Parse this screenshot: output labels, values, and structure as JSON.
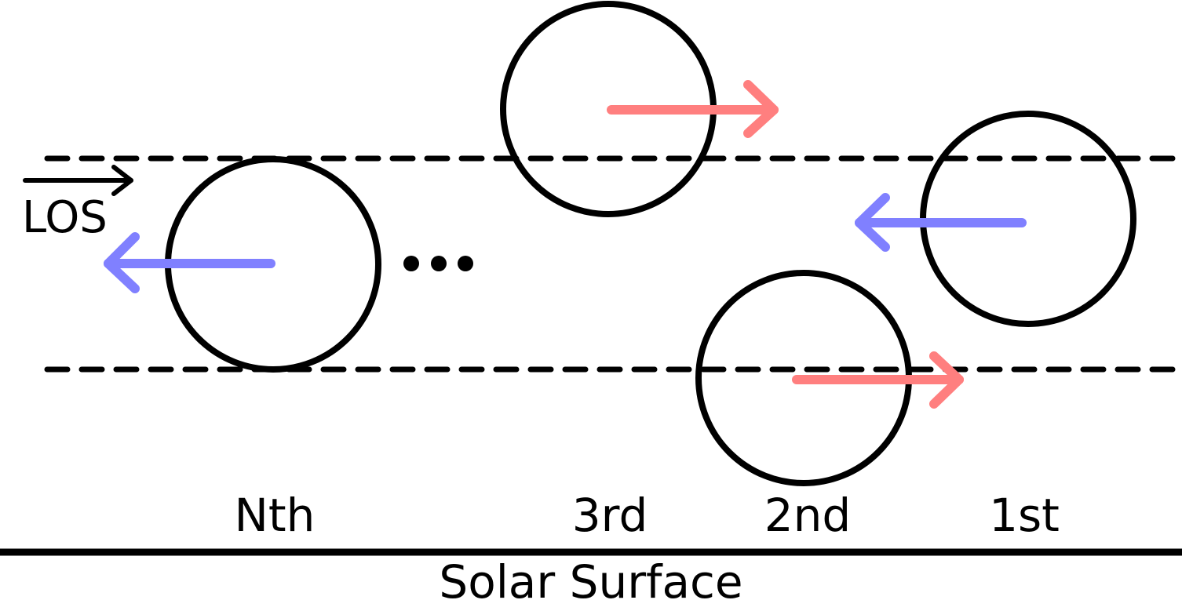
{
  "los_label": "LOS",
  "surface_label": "Solar Surface",
  "ellipsis_label": "...",
  "elements": [
    {
      "label": "Nth",
      "direction": "left"
    },
    {
      "label": "3rd",
      "direction": "right"
    },
    {
      "label": "2nd",
      "direction": "right"
    },
    {
      "label": "1st",
      "direction": "left"
    }
  ],
  "colors": {
    "outline": "#000000",
    "blueshift": "#8080ff",
    "redshift": "#ff7f7f"
  }
}
